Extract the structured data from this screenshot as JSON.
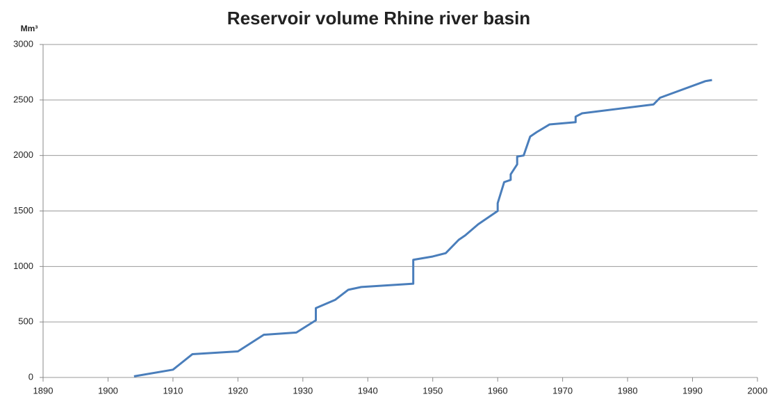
{
  "chart_data": {
    "type": "line",
    "title": "Reservoir volume Rhine river basin",
    "y_label": "Mm³",
    "x": [
      1904,
      1910,
      1913,
      1920,
      1924,
      1929,
      1932,
      1932,
      1935,
      1937,
      1939,
      1947,
      1947,
      1950,
      1952,
      1954,
      1955,
      1957,
      1960,
      1960,
      1961,
      1962,
      1962,
      1963,
      1963,
      1964,
      1965,
      1966,
      1968,
      1972,
      1972,
      1973,
      1984,
      1985,
      1992,
      1993
    ],
    "series": [
      {
        "color": "#4a7ebb",
        "values": [
          10,
          70,
          210,
          235,
          385,
          405,
          515,
          625,
          700,
          790,
          815,
          845,
          1060,
          1090,
          1120,
          1240,
          1280,
          1380,
          1500,
          1570,
          1760,
          1780,
          1830,
          1920,
          1990,
          2000,
          2170,
          2210,
          2280,
          2300,
          2350,
          2380,
          2460,
          2520,
          2670,
          2680
        ]
      }
    ],
    "xlim": [
      1890,
      2000
    ],
    "xticks": [
      1890,
      1900,
      1910,
      1920,
      1930,
      1940,
      1950,
      1960,
      1970,
      1980,
      1990,
      2000
    ],
    "ylim": [
      0,
      3000
    ],
    "yticks": [
      0,
      500,
      1000,
      1500,
      2000,
      2500,
      3000
    ],
    "grid": true
  }
}
